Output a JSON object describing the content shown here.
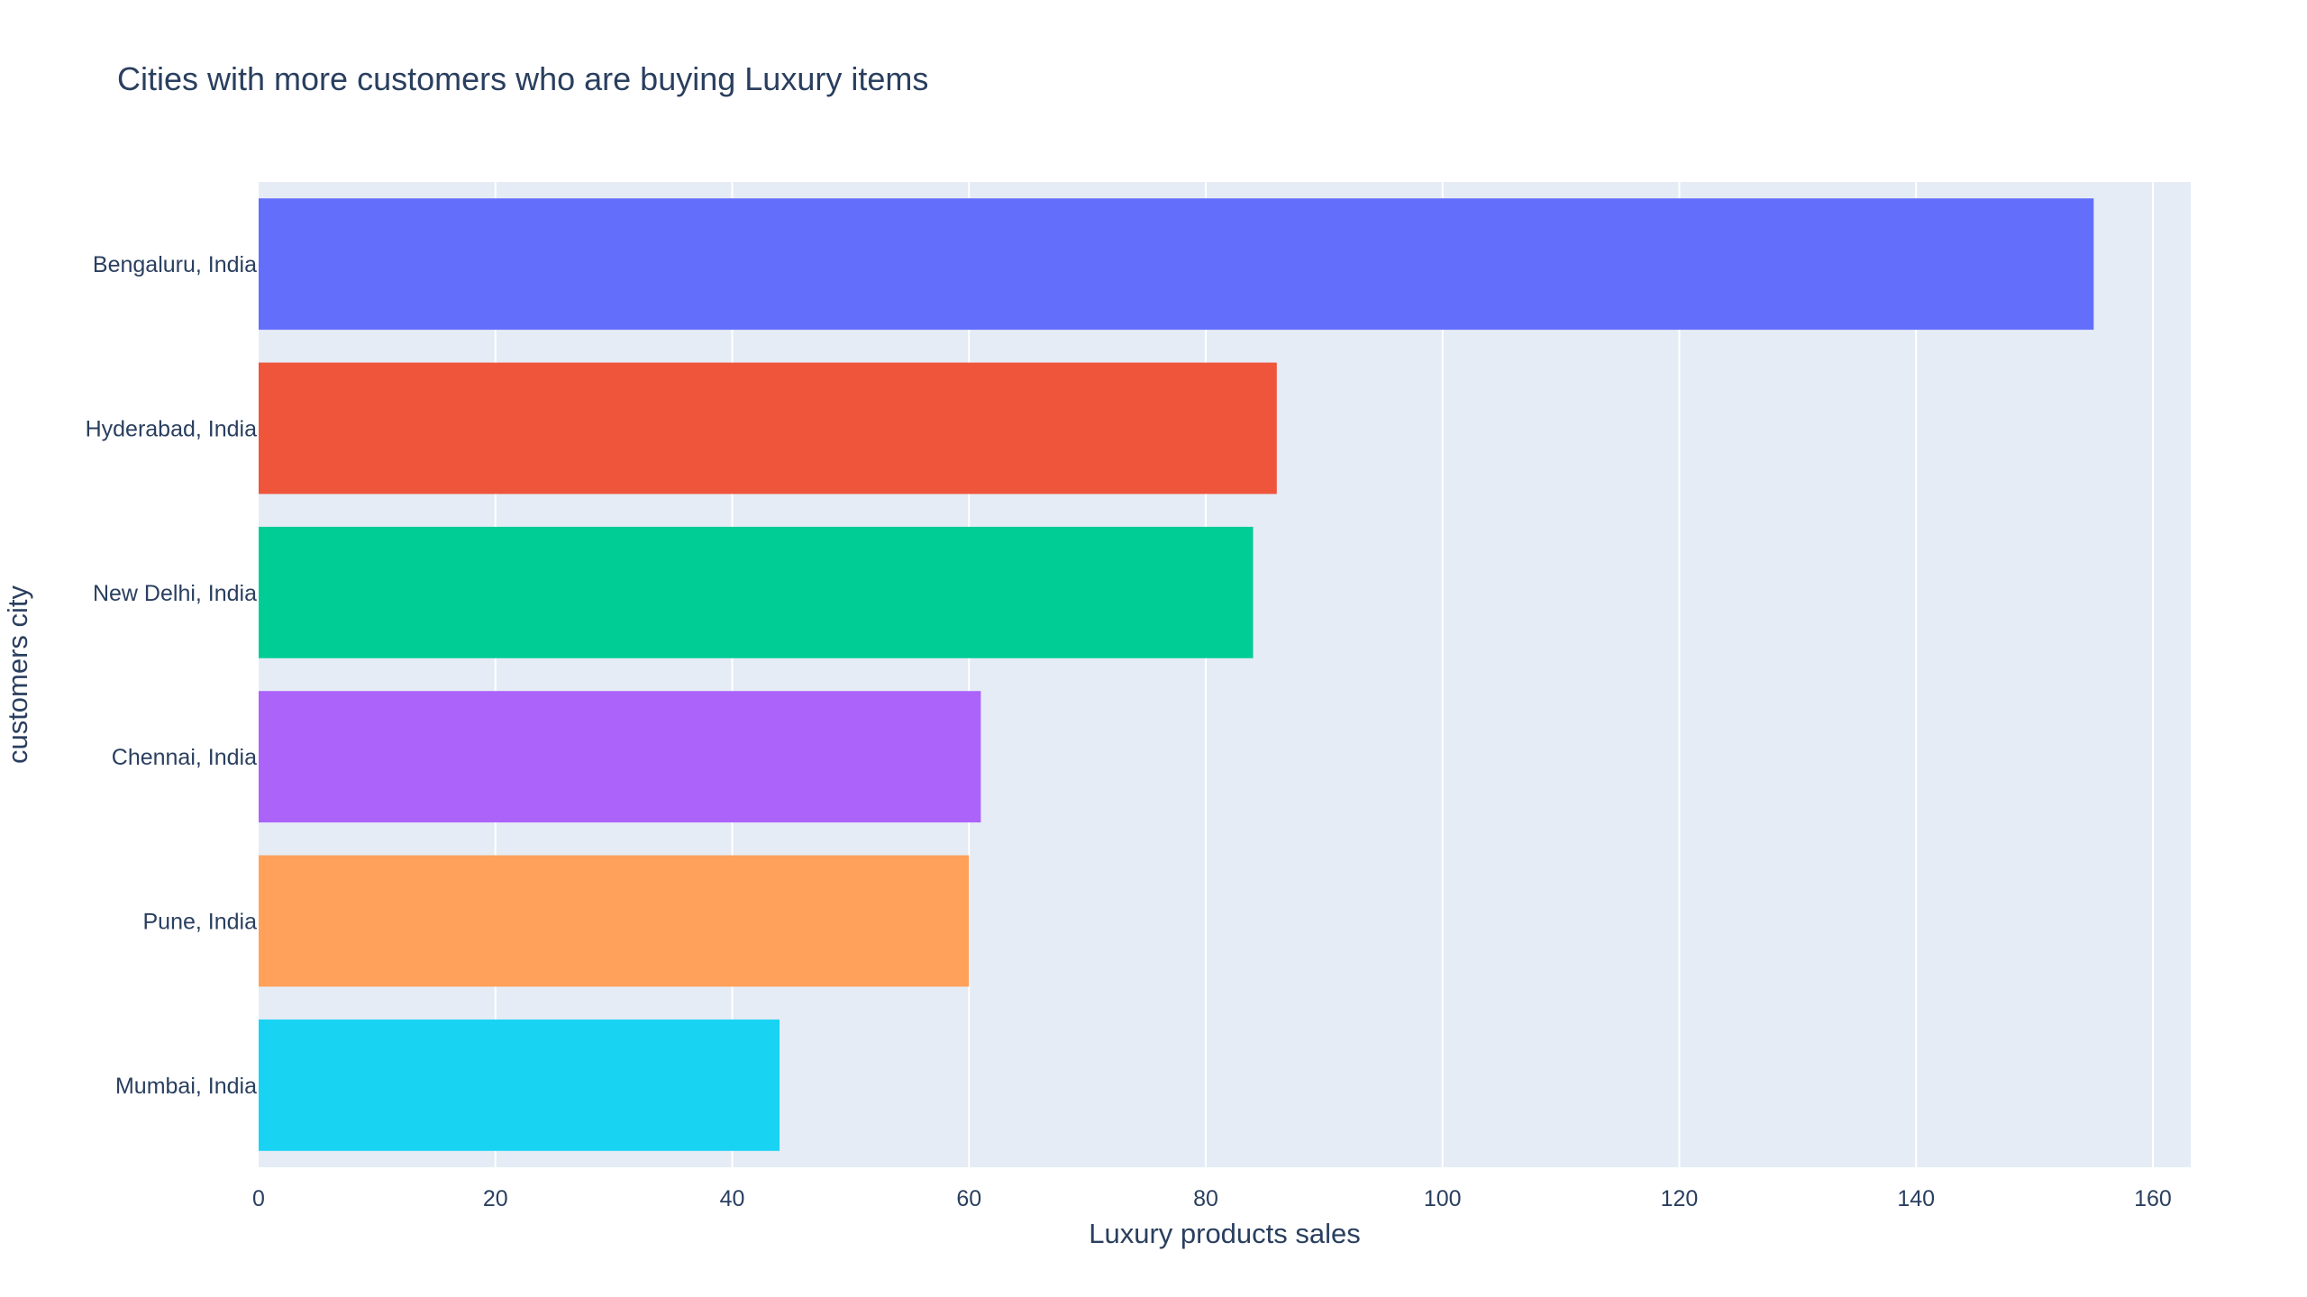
{
  "chart_data": {
    "type": "bar",
    "orientation": "horizontal",
    "title": "Cities with more customers who are buying Luxury items",
    "xlabel": "Luxury products sales",
    "ylabel": "customers city",
    "categories": [
      "Bengaluru, India",
      "Hyderabad, India",
      "New Delhi, India",
      "Chennai, India",
      "Pune, India",
      "Mumbai, India"
    ],
    "values": [
      155,
      86,
      84,
      61,
      60,
      44
    ],
    "colors": [
      "#636efa",
      "#EF553B",
      "#00cc96",
      "#ab63fa",
      "#FFA15A",
      "#19d3f3"
    ],
    "xlim": [
      0,
      163.2
    ],
    "xticks": [
      0,
      20,
      40,
      60,
      80,
      100,
      120,
      140,
      160
    ],
    "grid": true,
    "plot_background": "#e5ecf6",
    "grid_color": "#ffffff"
  }
}
